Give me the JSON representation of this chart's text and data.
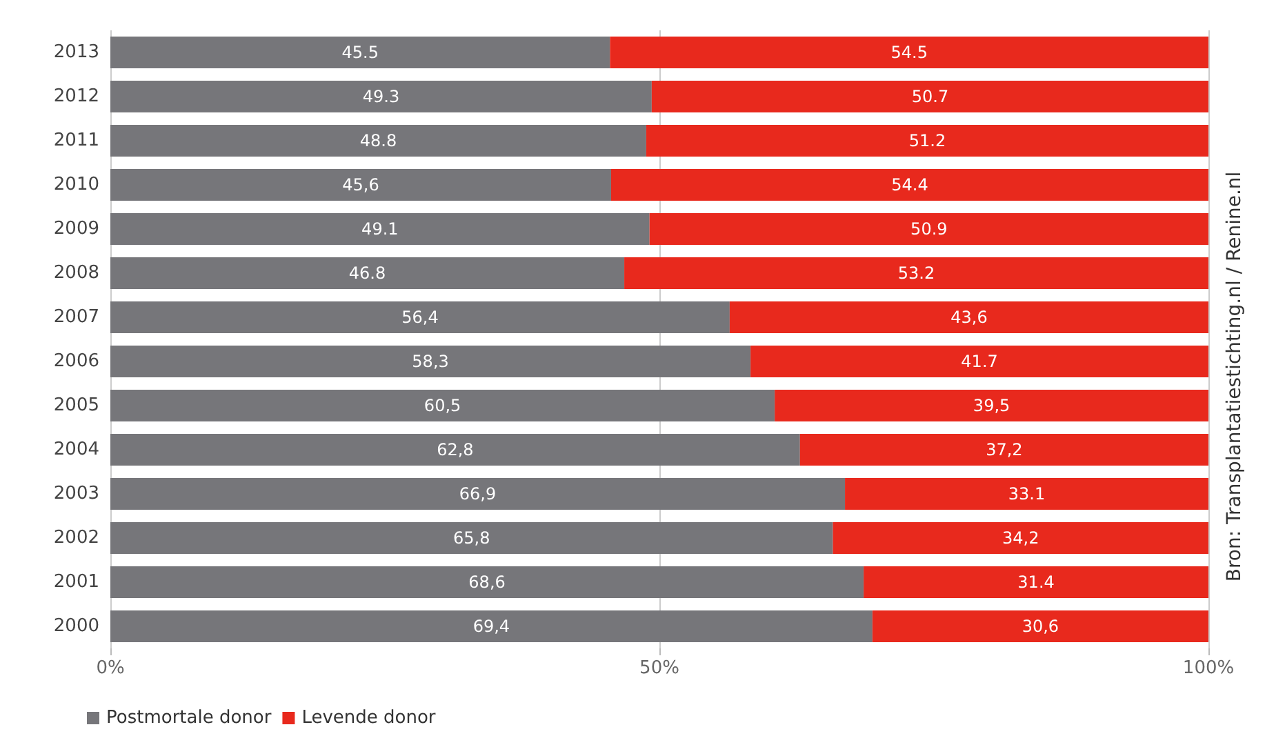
{
  "chart_data": {
    "type": "bar",
    "orientation": "horizontal",
    "stacked": true,
    "categories": [
      "2013",
      "2012",
      "2011",
      "2010",
      "2009",
      "2008",
      "2007",
      "2006",
      "2005",
      "2004",
      "2003",
      "2002",
      "2001",
      "2000"
    ],
    "series": [
      {
        "name": "Postmortale donor",
        "color": "#76767a",
        "values": [
          45.5,
          49.3,
          48.8,
          45.6,
          49.1,
          46.8,
          56.4,
          58.3,
          60.5,
          62.8,
          66.9,
          65.8,
          68.6,
          69.4
        ],
        "value_labels": [
          "45.5",
          "49.3",
          "48.8",
          "45,6",
          "49.1",
          "46.8",
          "56,4",
          "58,3",
          "60,5",
          "62,8",
          "66,9",
          "65,8",
          "68,6",
          "69,4"
        ]
      },
      {
        "name": "Levende donor",
        "color": "#e8291d",
        "values": [
          54.5,
          50.7,
          51.2,
          54.4,
          50.9,
          53.2,
          43.6,
          41.7,
          39.5,
          37.2,
          33.1,
          34.2,
          31.4,
          30.6
        ],
        "value_labels": [
          "54.5",
          "50.7",
          "51.2",
          "54.4",
          "50.9",
          "53.2",
          "43,6",
          "41.7",
          "39,5",
          "37,2",
          "33.1",
          "34,2",
          "31.4",
          "30,6"
        ]
      }
    ],
    "xlim": [
      0,
      100
    ],
    "xticks": [
      {
        "value": 0,
        "label": "0%"
      },
      {
        "value": 50,
        "label": "50%"
      },
      {
        "value": 100,
        "label": "100%"
      }
    ],
    "grid": "x",
    "legend": "bottom left",
    "annotations": [
      "Bron: Transplantatiestichting.nl / Renine.nl"
    ]
  }
}
